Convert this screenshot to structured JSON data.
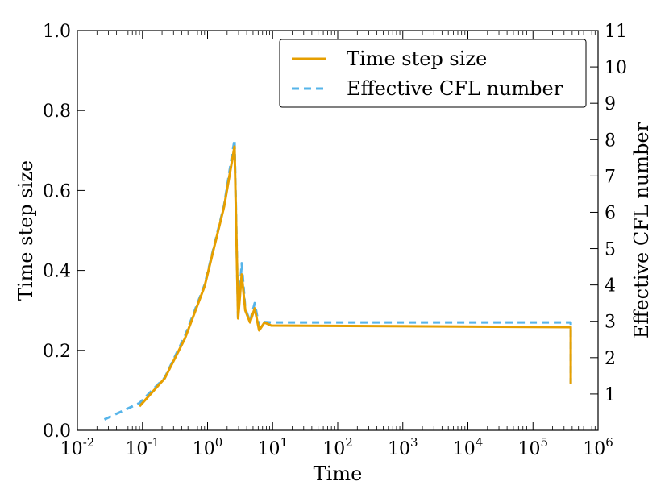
{
  "chart_data": {
    "type": "line",
    "xlabel": "Time",
    "ylabel_left": "Time step size",
    "ylabel_right": "Effective CFL number",
    "x_scale": "log",
    "x_range": [
      0.01,
      1000000
    ],
    "x_tick_labels": [
      {
        "base": "10",
        "exp": "-2"
      },
      {
        "base": "10",
        "exp": "-1"
      },
      {
        "base": "10",
        "exp": "0"
      },
      {
        "base": "10",
        "exp": "1"
      },
      {
        "base": "10",
        "exp": "2"
      },
      {
        "base": "10",
        "exp": "3"
      },
      {
        "base": "10",
        "exp": "4"
      },
      {
        "base": "10",
        "exp": "5"
      },
      {
        "base": "10",
        "exp": "6"
      }
    ],
    "y_left_range": [
      0.0,
      1.0
    ],
    "y_left_ticks": [
      "0.0",
      "0.2",
      "0.4",
      "0.6",
      "0.8",
      "1.0"
    ],
    "y_right_range": [
      0,
      11
    ],
    "y_right_ticks": [
      "1",
      "2",
      "3",
      "4",
      "5",
      "6",
      "7",
      "8",
      "9",
      "10",
      "11"
    ],
    "grid": false,
    "legend_position": "top-right",
    "legend": [
      "Time step size",
      "Effective CFL number"
    ],
    "series": [
      {
        "name": "Time step size",
        "axis": "left",
        "color": "#E69F00",
        "style": "solid",
        "x": [
          0.09,
          0.22,
          0.45,
          0.9,
          1.8,
          2.6,
          2.95,
          3.35,
          3.8,
          4.5,
          5.3,
          6.2,
          7.5,
          9.5,
          380000,
          380000
        ],
        "y": [
          0.06,
          0.13,
          0.23,
          0.36,
          0.56,
          0.71,
          0.28,
          0.39,
          0.3,
          0.27,
          0.305,
          0.25,
          0.27,
          0.262,
          0.258,
          0.115
        ]
      },
      {
        "name": "Effective CFL number",
        "axis": "right",
        "color": "#56B4E9",
        "style": "dashed",
        "x": [
          0.026,
          0.09,
          0.22,
          0.45,
          0.9,
          1.8,
          2.6,
          2.95,
          3.35,
          3.8,
          4.5,
          5.3,
          6.2,
          7.5,
          9.5,
          380000,
          380000
        ],
        "y": [
          0.3,
          0.75,
          1.45,
          2.6,
          4.0,
          6.2,
          8.0,
          3.1,
          4.6,
          3.35,
          3.0,
          3.5,
          2.85,
          2.98,
          2.97,
          2.97,
          1.3
        ]
      }
    ]
  }
}
